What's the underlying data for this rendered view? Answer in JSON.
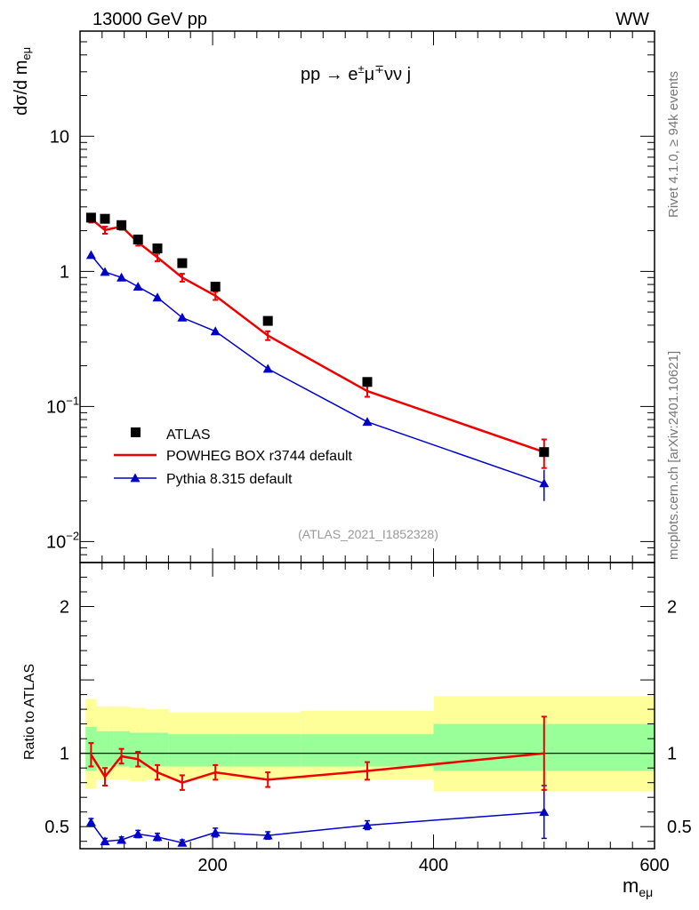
{
  "header": {
    "left": "13000 GeV pp",
    "right": "WW"
  },
  "side_labels": {
    "rivet": "Rivet 4.1.0, ≥ 94k events",
    "mcplots": "mcplots.cern.ch [arXiv:2401.10621]"
  },
  "colors": {
    "data": "#000000",
    "powheg": "#ee0000",
    "pythia": "#0000cc",
    "band_outer": "#ffff99",
    "band_inner": "#99ff99",
    "watermark": "#999999"
  },
  "chart_data": [
    {
      "type": "scatter",
      "panel": "main",
      "process_label": {
        "pre": "pp → e",
        "sup1": "±",
        "mid": "μ",
        "sup2": "∓",
        "post": "νν j"
      },
      "ylabel": {
        "main": "dσ/d m",
        "sub": "eμ"
      },
      "yscale": "log",
      "ylim": [
        0.007,
        60
      ],
      "xlim": [
        80,
        600
      ],
      "ytick_labels": [
        {
          "value": 10,
          "text": "10"
        },
        {
          "value": 1,
          "text": "1"
        },
        {
          "value": 0.1,
          "base": "10",
          "exp": "−1"
        },
        {
          "value": 0.01,
          "base": "10",
          "exp": "−2"
        }
      ],
      "watermark": "(ATLAS_2021_I1852328)",
      "legend_position": "bottom-left",
      "series": [
        {
          "name": "ATLAS",
          "marker": "square",
          "x": [
            90,
            102.5,
            117.5,
            132.5,
            150,
            172.5,
            202.5,
            250,
            340,
            500
          ],
          "y": [
            2.5,
            2.45,
            2.2,
            1.72,
            1.48,
            1.15,
            0.77,
            0.43,
            0.152,
            0.046
          ],
          "xerr": [
            [
              85,
              95
            ],
            [
              95,
              110
            ],
            [
              110,
              125
            ],
            [
              125,
              140
            ],
            [
              140,
              160
            ],
            [
              160,
              185
            ],
            [
              185,
              220
            ],
            [
              220,
              280
            ],
            [
              280,
              400
            ],
            [
              400,
              600
            ]
          ]
        },
        {
          "name": "POWHEG BOX r3744 default",
          "marker": "line",
          "x": [
            90,
            102.5,
            117.5,
            132.5,
            150,
            172.5,
            202.5,
            250,
            340,
            500
          ],
          "y": [
            2.45,
            2.02,
            2.15,
            1.64,
            1.27,
            0.9,
            0.66,
            0.335,
            0.13,
            0.046
          ],
          "yerr": [
            0.15,
            0.12,
            0.12,
            0.09,
            0.08,
            0.06,
            0.045,
            0.025,
            0.012,
            0.011
          ]
        },
        {
          "name": "Pythia 8.315 default",
          "marker": "triangle",
          "x": [
            90,
            102.5,
            117.5,
            132.5,
            150,
            172.5,
            202.5,
            250,
            340,
            500
          ],
          "y": [
            1.32,
            0.99,
            0.9,
            0.77,
            0.64,
            0.455,
            0.36,
            0.19,
            0.077,
            0.027
          ],
          "yerr": [
            0.04,
            0.03,
            0.03,
            0.025,
            0.02,
            0.015,
            0.012,
            0.007,
            0.004,
            0.007
          ]
        }
      ]
    },
    {
      "type": "line",
      "panel": "ratio",
      "ylabel": "Ratio to ATLAS",
      "xlabel": {
        "main": "m",
        "sub": "eμ"
      },
      "xlim": [
        80,
        600
      ],
      "ylim": [
        0.35,
        2.3
      ],
      "xticks": [
        200,
        400,
        600
      ],
      "ytick_labels": [
        {
          "value": 2,
          "text": "2"
        },
        {
          "value": 1,
          "text": "1"
        },
        {
          "value": 0.5,
          "text": "0.5"
        }
      ],
      "bands": [
        {
          "lo": 85,
          "hi": 95,
          "outer": [
            0.76,
            1.37
          ],
          "inner": [
            0.88,
            1.18
          ]
        },
        {
          "lo": 95,
          "hi": 110,
          "outer": [
            0.82,
            1.32
          ],
          "inner": [
            0.91,
            1.15
          ]
        },
        {
          "lo": 110,
          "hi": 125,
          "outer": [
            0.82,
            1.32
          ],
          "inner": [
            0.91,
            1.15
          ]
        },
        {
          "lo": 125,
          "hi": 140,
          "outer": [
            0.81,
            1.31
          ],
          "inner": [
            0.9,
            1.14
          ]
        },
        {
          "lo": 140,
          "hi": 160,
          "outer": [
            0.82,
            1.3
          ],
          "inner": [
            0.91,
            1.14
          ]
        },
        {
          "lo": 160,
          "hi": 185,
          "outer": [
            0.82,
            1.28
          ],
          "inner": [
            0.91,
            1.13
          ]
        },
        {
          "lo": 185,
          "hi": 220,
          "outer": [
            0.82,
            1.28
          ],
          "inner": [
            0.91,
            1.13
          ]
        },
        {
          "lo": 220,
          "hi": 280,
          "outer": [
            0.82,
            1.28
          ],
          "inner": [
            0.91,
            1.13
          ]
        },
        {
          "lo": 280,
          "hi": 400,
          "outer": [
            0.82,
            1.29
          ],
          "inner": [
            0.91,
            1.13
          ]
        },
        {
          "lo": 400,
          "hi": 600,
          "outer": [
            0.74,
            1.39
          ],
          "inner": [
            0.88,
            1.2
          ]
        }
      ],
      "series": [
        {
          "name": "POWHEG BOX r3744 default",
          "x": [
            90,
            102.5,
            117.5,
            132.5,
            150,
            172.5,
            202.5,
            250,
            340,
            500
          ],
          "y": [
            0.99,
            0.84,
            0.98,
            0.96,
            0.87,
            0.8,
            0.87,
            0.82,
            0.88,
            1.0
          ],
          "yerr": [
            0.08,
            0.06,
            0.05,
            0.05,
            0.05,
            0.05,
            0.05,
            0.05,
            0.06,
            0.25
          ]
        },
        {
          "name": "Pythia 8.315 default",
          "x": [
            90,
            102.5,
            117.5,
            132.5,
            150,
            172.5,
            202.5,
            250,
            340,
            500
          ],
          "y": [
            0.53,
            0.4,
            0.41,
            0.45,
            0.43,
            0.39,
            0.46,
            0.44,
            0.51,
            0.6
          ],
          "yerr": [
            0.025,
            0.02,
            0.02,
            0.025,
            0.025,
            0.02,
            0.03,
            0.025,
            0.03,
            0.18
          ]
        }
      ]
    }
  ]
}
